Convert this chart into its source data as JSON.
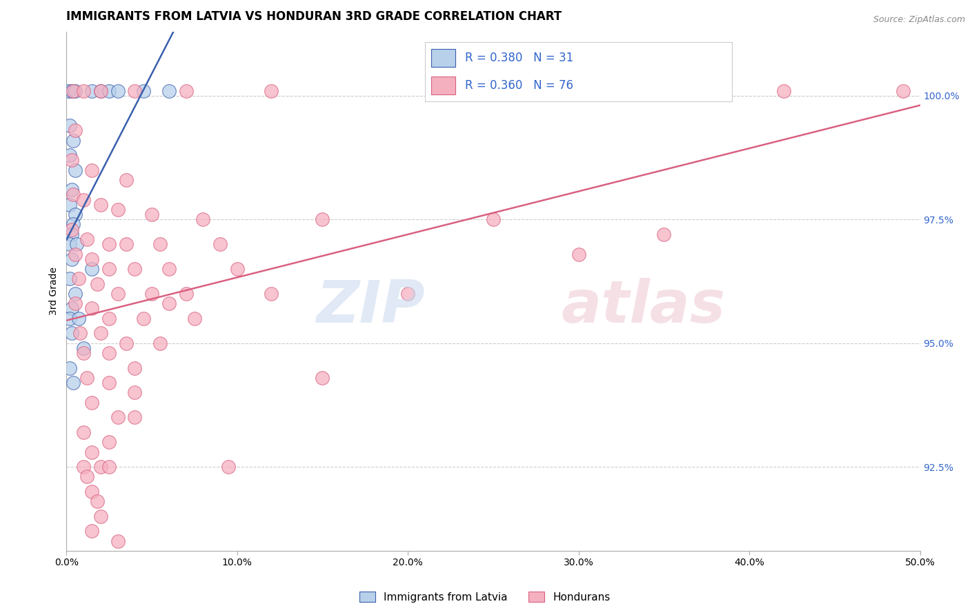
{
  "title": "IMMIGRANTS FROM LATVIA VS HONDURAN 3RD GRADE CORRELATION CHART",
  "source_text": "Source: ZipAtlas.com",
  "ylabel": "3rd Grade",
  "xlim": [
    0.0,
    50.0
  ],
  "ylim": [
    90.8,
    101.3
  ],
  "yticks_right": [
    92.5,
    95.0,
    97.5,
    100.0
  ],
  "ytick_labels_right": [
    "92.5%",
    "95.0%",
    "97.5%",
    "100.0%"
  ],
  "xticks": [
    0.0,
    10.0,
    20.0,
    30.0,
    40.0,
    50.0
  ],
  "xtick_labels": [
    "0.0%",
    "10.0%",
    "20.0%",
    "30.0%",
    "40.0%",
    "50.0%"
  ],
  "blue_scatter": [
    [
      0.1,
      100.1
    ],
    [
      0.3,
      100.1
    ],
    [
      0.5,
      100.1
    ],
    [
      1.5,
      100.1
    ],
    [
      2.0,
      100.1
    ],
    [
      2.5,
      100.1
    ],
    [
      3.0,
      100.1
    ],
    [
      4.5,
      100.1
    ],
    [
      6.0,
      100.1
    ],
    [
      0.2,
      99.4
    ],
    [
      0.4,
      99.1
    ],
    [
      0.2,
      98.8
    ],
    [
      0.5,
      98.5
    ],
    [
      0.3,
      98.1
    ],
    [
      0.2,
      97.8
    ],
    [
      0.5,
      97.6
    ],
    [
      0.4,
      97.4
    ],
    [
      0.3,
      97.2
    ],
    [
      0.2,
      97.0
    ],
    [
      0.6,
      97.0
    ],
    [
      0.3,
      96.7
    ],
    [
      1.5,
      96.5
    ],
    [
      0.2,
      96.3
    ],
    [
      0.5,
      96.0
    ],
    [
      0.3,
      95.7
    ],
    [
      0.2,
      95.5
    ],
    [
      0.7,
      95.5
    ],
    [
      0.3,
      95.2
    ],
    [
      1.0,
      94.9
    ],
    [
      0.2,
      94.5
    ],
    [
      0.4,
      94.2
    ]
  ],
  "pink_scatter": [
    [
      0.4,
      100.1
    ],
    [
      1.0,
      100.1
    ],
    [
      2.0,
      100.1
    ],
    [
      4.0,
      100.1
    ],
    [
      7.0,
      100.1
    ],
    [
      12.0,
      100.1
    ],
    [
      22.0,
      100.1
    ],
    [
      42.0,
      100.1
    ],
    [
      49.0,
      100.1
    ],
    [
      0.5,
      99.3
    ],
    [
      0.3,
      98.7
    ],
    [
      1.5,
      98.5
    ],
    [
      3.5,
      98.3
    ],
    [
      0.4,
      98.0
    ],
    [
      1.0,
      97.9
    ],
    [
      2.0,
      97.8
    ],
    [
      3.0,
      97.7
    ],
    [
      5.0,
      97.6
    ],
    [
      8.0,
      97.5
    ],
    [
      15.0,
      97.5
    ],
    [
      25.0,
      97.5
    ],
    [
      0.3,
      97.3
    ],
    [
      1.2,
      97.1
    ],
    [
      2.5,
      97.0
    ],
    [
      3.5,
      97.0
    ],
    [
      5.5,
      97.0
    ],
    [
      9.0,
      97.0
    ],
    [
      0.5,
      96.8
    ],
    [
      1.5,
      96.7
    ],
    [
      2.5,
      96.5
    ],
    [
      4.0,
      96.5
    ],
    [
      6.0,
      96.5
    ],
    [
      10.0,
      96.5
    ],
    [
      0.7,
      96.3
    ],
    [
      1.8,
      96.2
    ],
    [
      3.0,
      96.0
    ],
    [
      5.0,
      96.0
    ],
    [
      7.0,
      96.0
    ],
    [
      12.0,
      96.0
    ],
    [
      0.5,
      95.8
    ],
    [
      1.5,
      95.7
    ],
    [
      2.5,
      95.5
    ],
    [
      4.5,
      95.5
    ],
    [
      7.5,
      95.5
    ],
    [
      0.8,
      95.2
    ],
    [
      2.0,
      95.2
    ],
    [
      3.5,
      95.0
    ],
    [
      5.5,
      95.0
    ],
    [
      1.0,
      94.8
    ],
    [
      2.5,
      94.8
    ],
    [
      4.0,
      94.5
    ],
    [
      1.2,
      94.3
    ],
    [
      2.5,
      94.2
    ],
    [
      4.0,
      94.0
    ],
    [
      1.5,
      93.8
    ],
    [
      3.0,
      93.5
    ],
    [
      1.0,
      93.2
    ],
    [
      2.5,
      93.0
    ],
    [
      1.5,
      92.8
    ],
    [
      1.0,
      92.5
    ],
    [
      2.0,
      92.5
    ],
    [
      1.2,
      92.3
    ],
    [
      1.5,
      92.0
    ],
    [
      2.5,
      92.5
    ],
    [
      1.8,
      91.8
    ],
    [
      9.5,
      92.5
    ],
    [
      1.5,
      91.2
    ],
    [
      3.0,
      91.0
    ],
    [
      2.0,
      91.5
    ],
    [
      4.0,
      93.5
    ],
    [
      6.0,
      95.8
    ],
    [
      15.0,
      94.3
    ],
    [
      20.0,
      96.0
    ],
    [
      30.0,
      96.8
    ],
    [
      35.0,
      97.2
    ]
  ],
  "blue_line_color": "#3a5fad",
  "pink_line_color": "#d96080",
  "blue_scatter_color": "#b8d0ea",
  "pink_scatter_color": "#f5b0c0",
  "background_color": "#ffffff",
  "grid_color": "#cccccc",
  "title_fontsize": 12,
  "axis_label_fontsize": 10,
  "tick_fontsize": 10,
  "marker_size": 200,
  "line_width": 1.8
}
